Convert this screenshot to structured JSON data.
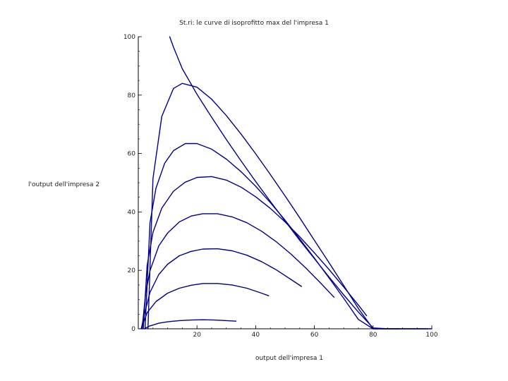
{
  "chart_data": {
    "type": "line",
    "title": "St.ri: le curve di isoprofitto max del l'impresa 1",
    "xlabel": "output dell'impresa 1",
    "ylabel": "l'output dell'impresa 2",
    "xlim": [
      0,
      100
    ],
    "ylim": [
      0,
      100
    ],
    "x_ticks": [
      20,
      40,
      60,
      80,
      100
    ],
    "x_tick_labels": [
      "20",
      "40",
      "60",
      "80",
      "100"
    ],
    "y_ticks": [
      0,
      20,
      40,
      60,
      80,
      100
    ],
    "y_tick_labels": [
      "0",
      "20",
      "40",
      "60",
      "80",
      "100"
    ],
    "grid": false,
    "line_color": "#00008b",
    "series": [
      {
        "x": [
          10.7,
          12,
          15,
          20,
          25,
          30,
          35,
          40,
          45,
          50,
          55,
          60,
          65,
          70,
          75,
          80,
          85,
          90,
          95,
          98.5
        ],
        "y": [
          100,
          96.4,
          89.0,
          80.3,
          72.4,
          64.8,
          57.5,
          50.4,
          43.6,
          36.9,
          30.3,
          24.0,
          17.7,
          11.6,
          5.7,
          0.3,
          0,
          0,
          0,
          0
        ]
      },
      {
        "x": [
          3.3,
          5,
          8,
          12,
          15,
          20,
          25,
          30,
          35,
          40,
          45,
          50,
          55,
          60,
          65,
          70,
          75,
          80,
          85,
          90,
          95,
          100
        ],
        "y": [
          0,
          51.4,
          72.7,
          82.3,
          84.0,
          82.7,
          78.6,
          73.0,
          66.7,
          59.9,
          52.8,
          45.5,
          38.0,
          30.3,
          22.6,
          14.8,
          6.9,
          0,
          0,
          0,
          0,
          0
        ]
      },
      {
        "x": [
          2.3,
          4,
          6,
          9,
          12,
          16,
          20,
          25,
          30,
          35,
          40,
          45,
          50,
          55,
          60,
          65,
          70,
          75,
          80,
          85,
          88.9
        ],
        "y": [
          0,
          36.3,
          48.1,
          56.7,
          61.0,
          63.4,
          63.4,
          61.5,
          58.1,
          53.8,
          48.8,
          43.2,
          37.2,
          30.8,
          24.2,
          17.4,
          10.4,
          3.2,
          0,
          0,
          0
        ]
      },
      {
        "x": [
          1.7,
          3,
          5,
          8,
          12,
          16,
          20,
          25,
          30,
          35,
          40,
          45,
          50,
          55,
          60,
          65,
          70,
          75,
          77.8
        ],
        "y": [
          0,
          21.7,
          33.0,
          41.3,
          47.1,
          50.2,
          51.8,
          52.1,
          50.9,
          48.5,
          45.2,
          41.2,
          36.6,
          31.5,
          26.0,
          20.3,
          14.3,
          8.1,
          4.5
        ]
      },
      {
        "x": [
          1.3,
          2.5,
          4,
          7,
          10,
          14,
          18,
          22,
          27,
          32,
          37,
          42,
          47,
          52,
          57,
          62,
          66.7
        ],
        "y": [
          0,
          12.1,
          19.9,
          28.4,
          32.8,
          36.6,
          38.6,
          39.4,
          39.4,
          38.3,
          36.3,
          33.4,
          29.8,
          25.6,
          20.9,
          15.8,
          10.8
        ]
      },
      {
        "x": [
          1.0,
          2,
          4,
          7,
          10,
          14,
          18,
          22,
          27,
          32,
          37,
          42,
          47,
          52,
          55.6
        ],
        "y": [
          0,
          4.6,
          12.5,
          18.6,
          22.1,
          25.0,
          26.5,
          27.3,
          27.4,
          26.7,
          25.2,
          23.0,
          20.2,
          16.9,
          14.5
        ]
      },
      {
        "x": [
          1.0,
          3,
          6,
          10,
          14,
          18,
          22,
          27,
          32,
          37,
          42,
          44.4
        ],
        "y": [
          0,
          5.5,
          9.3,
          12.2,
          13.9,
          14.9,
          15.5,
          15.5,
          15.0,
          13.9,
          12.2,
          11.3
        ]
      },
      {
        "x": [
          2,
          4,
          7,
          10,
          14,
          18,
          22,
          26,
          30,
          33.3
        ],
        "y": [
          0,
          1.0,
          1.9,
          2.4,
          2.8,
          3.0,
          3.1,
          3.0,
          2.8,
          2.6
        ]
      }
    ]
  }
}
